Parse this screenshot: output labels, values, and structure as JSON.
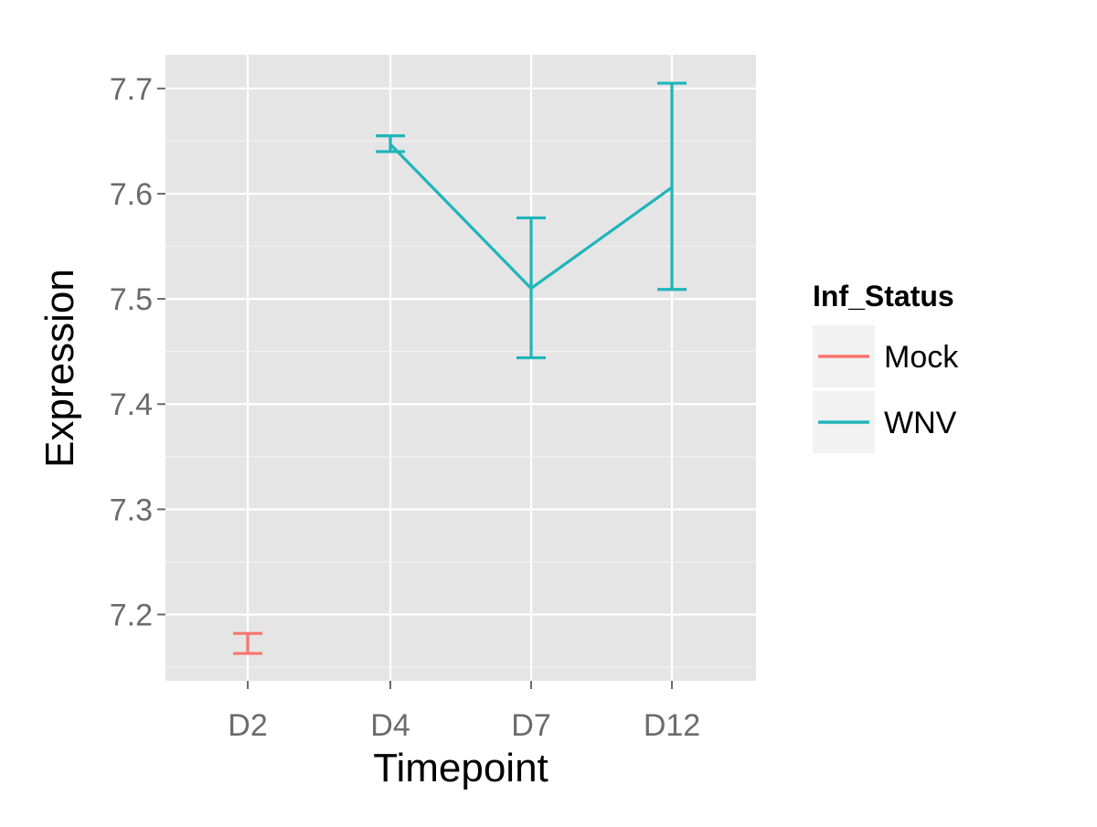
{
  "chart_data": {
    "type": "line",
    "xlabel": "Timepoint",
    "ylabel": "Expression",
    "categories": [
      "D2",
      "D4",
      "D7",
      "D12"
    ],
    "y_ticks": [
      "7.2",
      "7.3",
      "7.4",
      "7.5",
      "7.6",
      "7.7"
    ],
    "ylim": [
      7.137,
      7.732
    ],
    "grid": true,
    "legend": {
      "title": "Inf_Status",
      "position": "right",
      "entries": [
        "Mock",
        "WNV"
      ]
    },
    "series": [
      {
        "name": "Mock",
        "color": "#F8766D",
        "points": [
          {
            "x": "D2",
            "y": 7.172,
            "ymin": 7.163,
            "ymax": 7.182
          }
        ]
      },
      {
        "name": "WNV",
        "color": "#1FB5B9",
        "points": [
          {
            "x": "D4",
            "y": 7.647,
            "ymin": 7.64,
            "ymax": 7.655
          },
          {
            "x": "D7",
            "y": 7.51,
            "ymin": 7.444,
            "ymax": 7.577
          },
          {
            "x": "D12",
            "y": 7.606,
            "ymin": 7.509,
            "ymax": 7.705
          }
        ]
      }
    ],
    "colors": {
      "panel_background": "#E5E5E5",
      "grid_line": "#FFFFFF",
      "legend_key_background": "#F2F2F2"
    }
  }
}
